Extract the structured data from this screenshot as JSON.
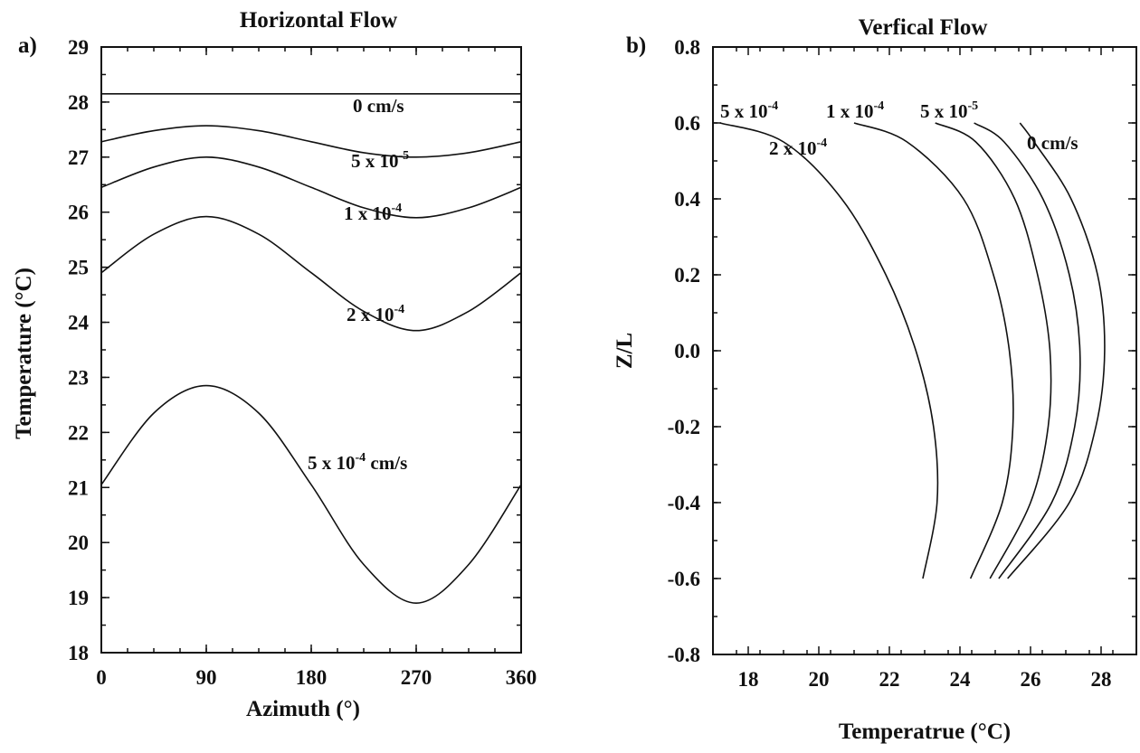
{
  "chart_data": [
    {
      "type": "line",
      "panel_label": "a)",
      "title": "Horizontal Flow",
      "xlabel": "Azimuth (°)",
      "ylabel": "Temperature (°C)",
      "xlim": [
        0,
        360
      ],
      "ylim": [
        18,
        29
      ],
      "xticks": [
        0,
        90,
        180,
        270,
        360
      ],
      "xtick_labels": [
        "0",
        "90",
        "180",
        "270",
        "360"
      ],
      "yticks": [
        18,
        19,
        20,
        21,
        22,
        23,
        24,
        25,
        26,
        27,
        28,
        29
      ],
      "ytick_labels": [
        "18",
        "19",
        "20",
        "21",
        "22",
        "23",
        "24",
        "25",
        "26",
        "27",
        "28",
        "29"
      ],
      "grid": false,
      "legend": "none",
      "series": [
        {
          "id": "h0",
          "label_parts": [
            "0 cm/s"
          ],
          "x": [
            0,
            45,
            90,
            135,
            180,
            225,
            270,
            315,
            360
          ],
          "y": [
            28.15,
            28.15,
            28.15,
            28.15,
            28.15,
            28.15,
            28.15,
            28.15,
            28.15
          ]
        },
        {
          "id": "h5e-5",
          "label_parts": [
            "5 x 10",
            "-5"
          ],
          "x": [
            0,
            45,
            90,
            135,
            180,
            225,
            270,
            315,
            360
          ],
          "y": [
            27.28,
            27.48,
            27.57,
            27.48,
            27.28,
            27.08,
            27.0,
            27.08,
            27.28
          ]
        },
        {
          "id": "h1e-4",
          "label_parts": [
            "1 x 10",
            "-4"
          ],
          "x": [
            0,
            45,
            90,
            135,
            180,
            225,
            270,
            315,
            360
          ],
          "y": [
            26.45,
            26.82,
            27.0,
            26.82,
            26.45,
            26.08,
            25.9,
            26.08,
            26.45
          ]
        },
        {
          "id": "h2e-4",
          "label_parts": [
            "2 x 10",
            "-4"
          ],
          "x": [
            0,
            45,
            90,
            135,
            180,
            225,
            270,
            315,
            360
          ],
          "y": [
            24.9,
            25.6,
            25.92,
            25.6,
            24.9,
            24.2,
            23.85,
            24.2,
            24.9
          ]
        },
        {
          "id": "h5e-4",
          "label_parts": [
            "5 x 10",
            "-4",
            " cm/s"
          ],
          "x": [
            0,
            45,
            90,
            135,
            180,
            225,
            270,
            315,
            360
          ],
          "y": [
            21.05,
            22.35,
            22.85,
            22.35,
            21.05,
            19.6,
            18.9,
            19.6,
            21.05
          ]
        }
      ]
    },
    {
      "type": "line",
      "panel_label": "b)",
      "title": "Verfical Flow",
      "xlabel": "Temperatrue (°C)",
      "ylabel": "Z/L",
      "xlim": [
        17,
        29
      ],
      "ylim": [
        -0.8,
        0.8
      ],
      "xticks": [
        18,
        20,
        22,
        24,
        26,
        28
      ],
      "xtick_labels": [
        "18",
        "20",
        "22",
        "24",
        "26",
        "28"
      ],
      "yticks": [
        -0.8,
        -0.6,
        -0.4,
        -0.2,
        0.0,
        0.2,
        0.4,
        0.6,
        0.8
      ],
      "ytick_labels": [
        "-0.8",
        "-0.6",
        "-0.4",
        "-0.2",
        "0.0",
        "0.2",
        "0.4",
        "0.6",
        "0.8"
      ],
      "grid": false,
      "legend": "none",
      "series": [
        {
          "id": "v5e-4",
          "label_parts": [
            "5 x 10",
            "-4"
          ],
          "x": [
            22.95,
            23.35,
            23.25,
            22.75,
            21.9,
            20.65,
            19.0,
            17.2
          ],
          "y": [
            -0.6,
            -0.4,
            -0.2,
            0.0,
            0.2,
            0.4,
            0.55,
            0.6
          ]
        },
        {
          "id": "v2e-4",
          "label_parts": [
            "2 x 10",
            "-4"
          ],
          "x": [],
          "y": []
        },
        {
          "id": "v1e-4",
          "label_parts": [
            "1 x 10",
            "-4"
          ],
          "x": [
            24.3,
            25.2,
            25.5,
            25.4,
            24.95,
            24.1,
            22.5,
            21.0
          ],
          "y": [
            -0.6,
            -0.4,
            -0.2,
            0.0,
            0.2,
            0.4,
            0.55,
            0.6
          ]
        },
        {
          "id": "v5e-5",
          "label_parts": [
            "5 x 10",
            "-5"
          ],
          "x": [
            24.85,
            26.0,
            26.5,
            26.55,
            26.2,
            25.55,
            24.45,
            23.3
          ],
          "y": [
            -0.6,
            -0.4,
            -0.2,
            0.0,
            0.2,
            0.4,
            0.55,
            0.6
          ]
        },
        {
          "id": "v0",
          "label_parts": [
            "0 cm/s"
          ],
          "x": [
            25.35,
            27.1,
            27.85,
            28.1,
            27.9,
            27.15,
            26.1,
            25.7
          ],
          "y": [
            -0.6,
            -0.4,
            -0.2,
            0.0,
            0.2,
            0.4,
            0.55,
            0.6
          ]
        },
        {
          "id": "v0b",
          "label_parts": [],
          "x": [
            25.1,
            26.6,
            27.25,
            27.4,
            27.1,
            26.35,
            25.25,
            24.4
          ],
          "y": [
            -0.6,
            -0.4,
            -0.2,
            0.0,
            0.2,
            0.4,
            0.55,
            0.6
          ]
        }
      ]
    }
  ]
}
